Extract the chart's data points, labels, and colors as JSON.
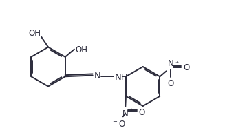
{
  "background": "#ffffff",
  "line_color": "#2a2a3a",
  "line_width": 1.4,
  "dbo": 0.055,
  "fs": 8.5,
  "figsize": [
    3.59,
    2.03
  ],
  "dpi": 100,
  "xlim": [
    0.0,
    10.0
  ],
  "ylim": [
    0.0,
    5.8
  ]
}
